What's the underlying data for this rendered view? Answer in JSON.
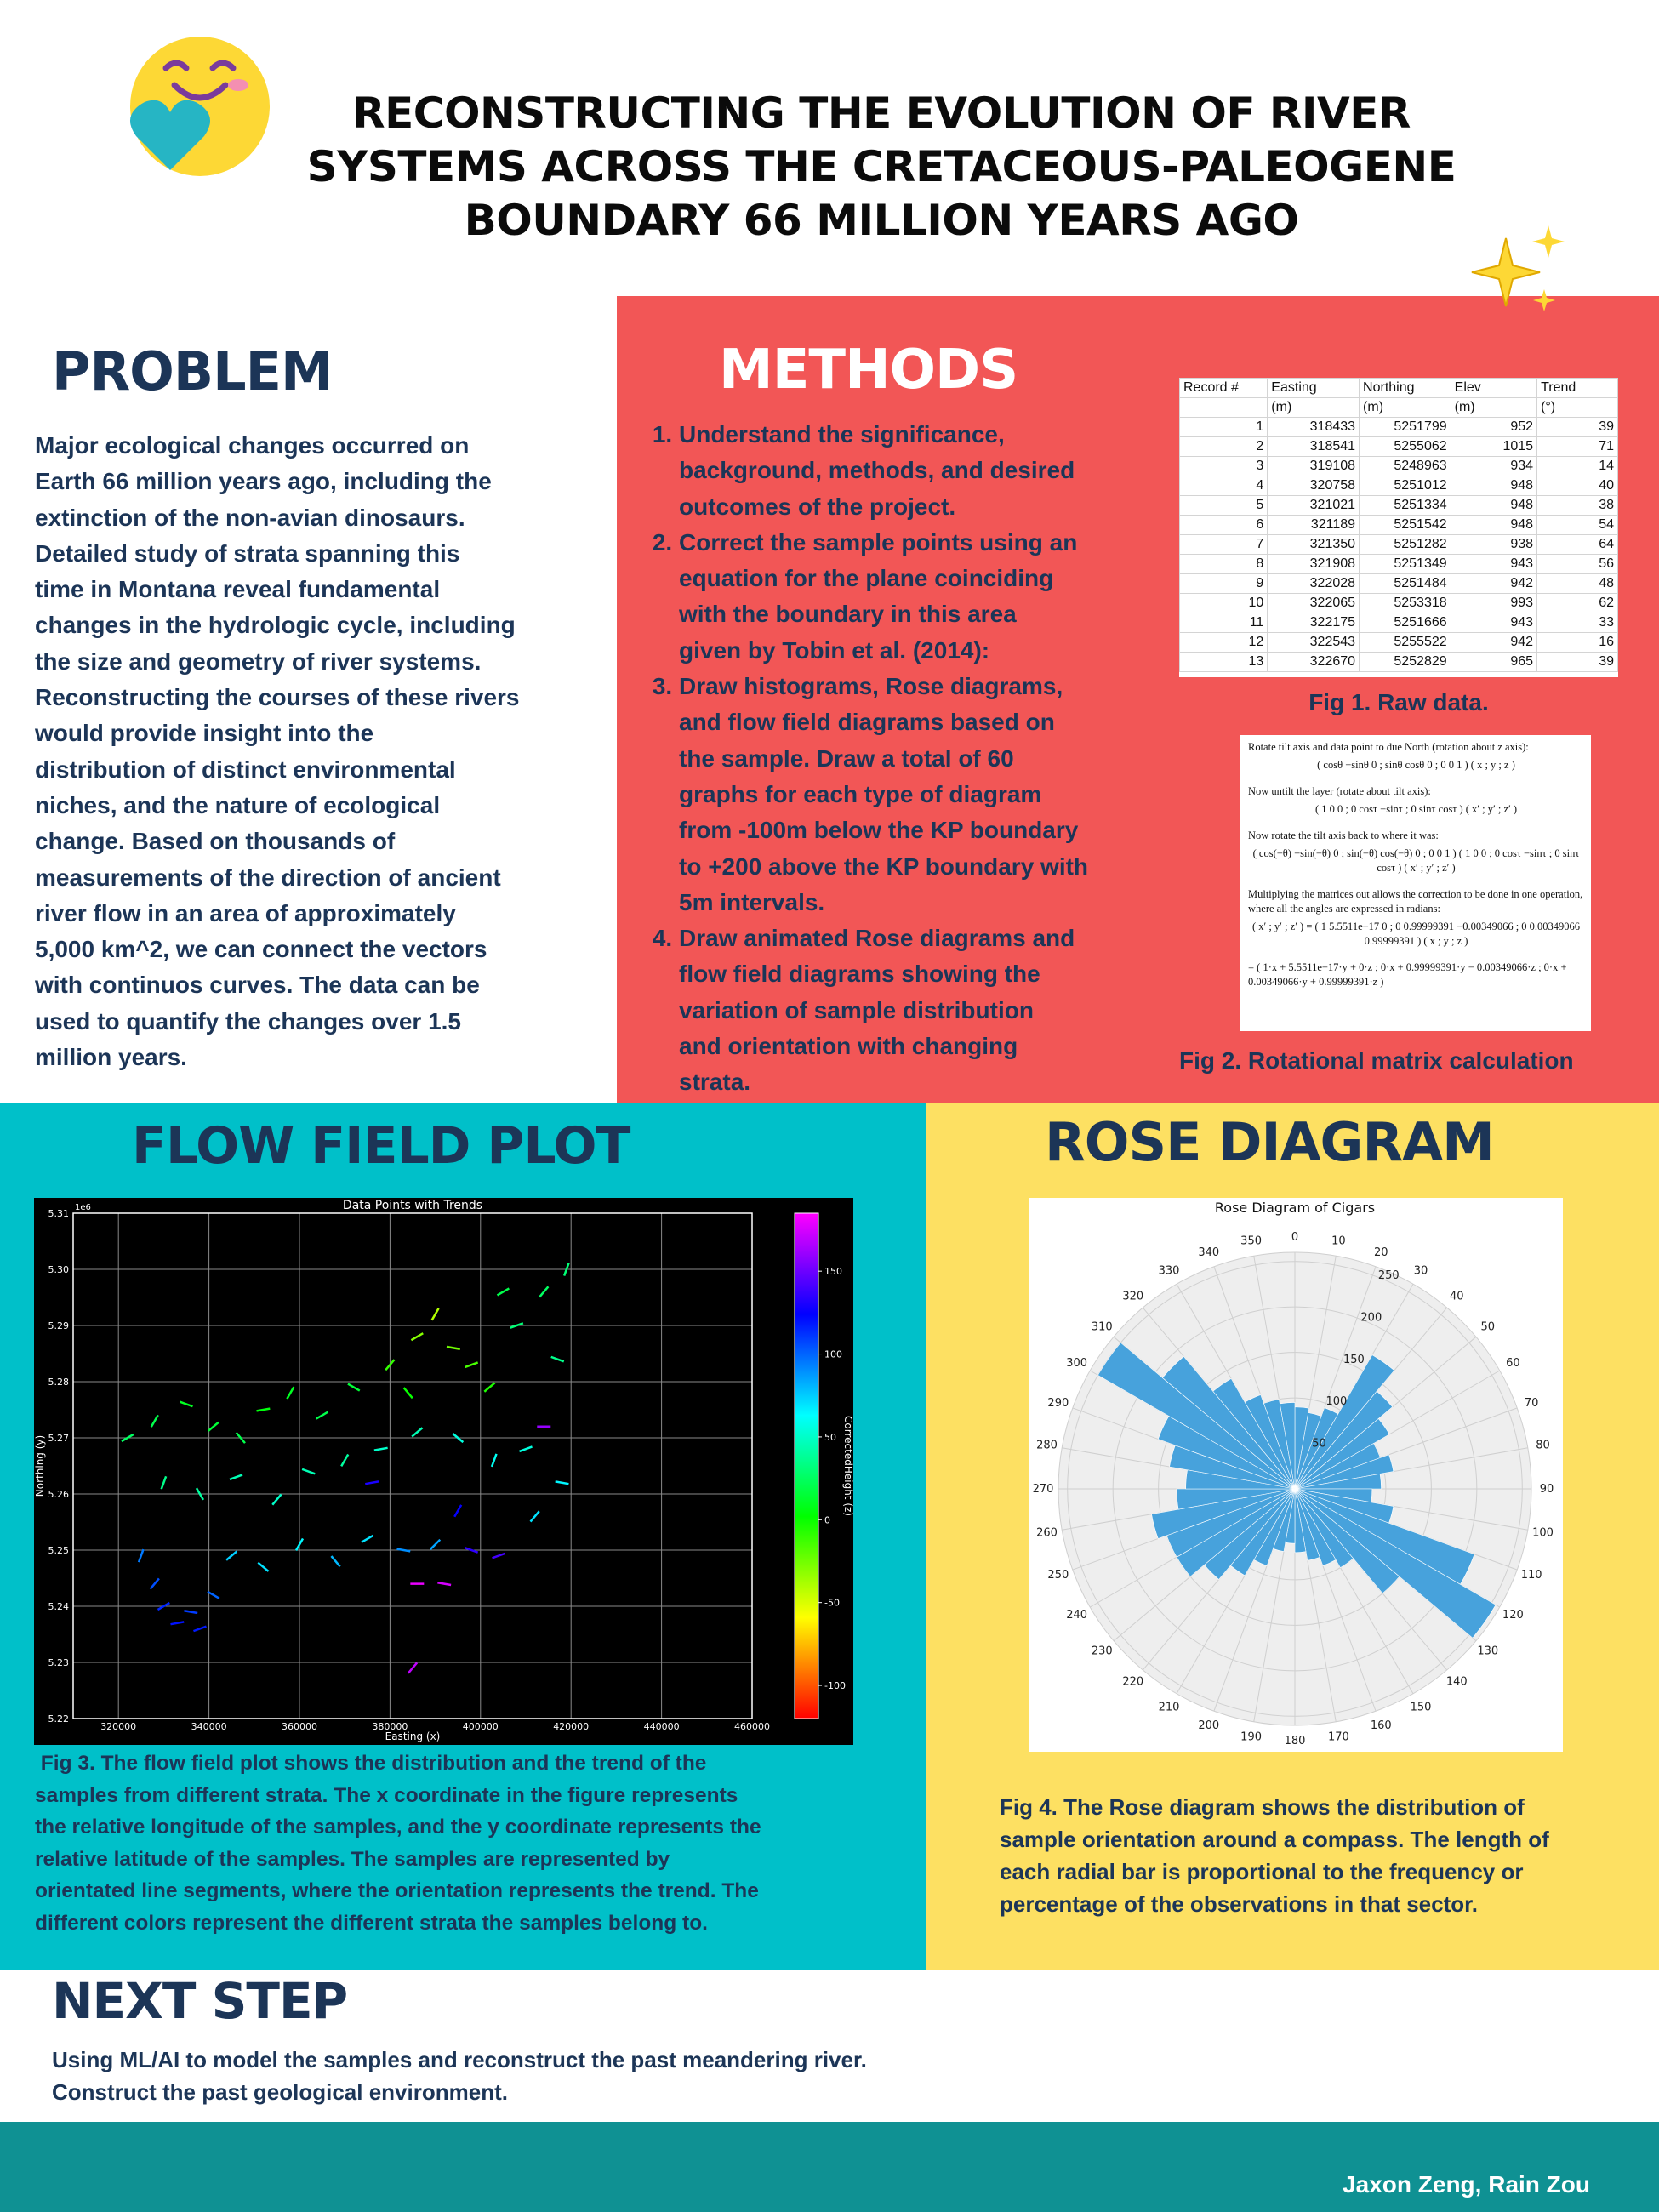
{
  "header": {
    "title": [
      "RECONSTRUCTING THE EVOLUTION OF RIVER",
      "SYSTEMS ACROSS THE CRETACEOUS-PALEOGENE",
      "BOUNDARY 66 MILLION YEARS AGO"
    ]
  },
  "problem": {
    "heading": "PROBLEM",
    "lines": [
      "Major ecological changes occurred on",
      "Earth 66 million years ago, including the",
      "extinction of the non-avian dinosaurs.",
      "Detailed study of strata spanning this",
      "time in Montana reveal fundamental",
      "changes in the hydrologic cycle, including",
      "the size and geometry of river systems.",
      "Reconstructing the courses of these rivers",
      "would provide insight into the",
      "distribution of distinct environmental",
      "niches, and the nature of ecological",
      "change. Based on thousands of",
      "measurements of the direction of ancient",
      "river flow in an area of approximately",
      "5,000 km^2, we can connect the vectors",
      "with continuos curves. The data can be",
      "used to quantify the changes over 1.5",
      "million years."
    ]
  },
  "methods": {
    "heading": "METHODS",
    "steps": [
      [
        "Understand the significance,",
        "background, methods, and desired",
        "outcomes of the project."
      ],
      [
        "Correct the sample points using an",
        "equation for the plane coinciding",
        "with the boundary in this area",
        "given by Tobin et al. (2014):"
      ],
      [
        "Draw histograms, Rose diagrams,",
        "and flow field diagrams based on",
        "the sample. Draw a total of 60",
        "graphs for each type of diagram",
        "from -100m below the KP boundary",
        "to +200 above the KP boundary with",
        "5m intervals."
      ],
      [
        "Draw animated Rose diagrams and",
        "flow field diagrams showing the",
        "variation of sample distribution",
        "and orientation with changing",
        "strata."
      ]
    ]
  },
  "fig1": {
    "table": {
      "header": [
        [
          "Record #",
          "Easting",
          "Northing",
          "Elev",
          "Trend"
        ],
        [
          "",
          "(m)",
          "(m)",
          "(m)",
          "(°)"
        ]
      ],
      "rows": [
        [
          1,
          318433,
          5251799,
          952,
          39
        ],
        [
          2,
          318541,
          5255062,
          1015,
          71
        ],
        [
          3,
          319108,
          5248963,
          934,
          14
        ],
        [
          4,
          320758,
          5251012,
          948,
          40
        ],
        [
          5,
          321021,
          5251334,
          948,
          38
        ],
        [
          6,
          321189,
          5251542,
          948,
          54
        ],
        [
          7,
          321350,
          5251282,
          938,
          64
        ],
        [
          8,
          321908,
          5251349,
          943,
          56
        ],
        [
          9,
          322028,
          5251484,
          942,
          48
        ],
        [
          10,
          322065,
          5253318,
          993,
          62
        ],
        [
          11,
          322175,
          5251666,
          943,
          33
        ],
        [
          12,
          322543,
          5255522,
          942,
          16
        ],
        [
          13,
          322670,
          5252829,
          965,
          39
        ]
      ]
    },
    "caption": "Fig 1. Raw data."
  },
  "fig2": {
    "lines": [
      "Rotate tilt axis and data point to due North (rotation about z axis):",
      "( cosθ  −sinθ  0 ; sinθ  cosθ  0 ; 0  0  1 ) ( x ; y ; z )",
      "Now untilt the layer (rotate about tilt axis):",
      "( 1  0  0 ; 0  cosτ  −sinτ ; 0  sinτ  cosτ ) ( x′ ; y′ ; z′ )",
      "Now rotate the tilt axis back to where it was:",
      "( cos(−θ)  −sin(−θ)  0 ; sin(−θ)  cos(−θ)  0 ; 0  0  1 ) ( 1  0  0 ; 0  cosτ  −sinτ ; 0  sinτ  cosτ ) ( x′ ; y′ ; z′ )",
      "Multiplying the matrices out allows the correction to be done in one operation, where all the angles are expressed in radians:",
      "( x′ ; y′ ; z′ ) = ( 1  5.5511e−17  0 ; 0  0.99999391  −0.00349066 ; 0  0.00349066  0.99999391 ) ( x ; y ; z )",
      "= ( 1·x + 5.5511e−17·y + 0·z ; 0·x + 0.99999391·y − 0.00349066·z ; 0·x + 0.00349066·y + 0.99999391·z )"
    ],
    "caption": "Fig 2. Rotational matrix calculation"
  },
  "flow_panel": {
    "heading": "FLOW FIELD PLOT",
    "caption": [
      " Fig 3. The flow field plot shows the distribution and the trend of the",
      "samples from different strata. The x coordinate in the figure represents",
      "the relative longitude of the samples, and the y coordinate represents the",
      "relative latitude of the samples. The samples are represented by",
      "orientated line segments, where the orientation represents the trend. The",
      "different colors represent the different strata the samples belong to."
    ]
  },
  "rose_panel": {
    "heading": "ROSE DIAGRAM",
    "caption": [
      "Fig 4. The Rose diagram shows the distribution of",
      "sample orientation around a compass. The length of",
      "each radial bar is proportional to the frequency or",
      "percentage of the observations in that sector."
    ]
  },
  "next_step": {
    "heading": "NEXT STEP",
    "lines": [
      "Using ML/AI to model the samples and reconstruct the past meandering river.",
      "Construct the past geological environment."
    ]
  },
  "footer": {
    "authors": "Jaxon Zeng, Rain Zou"
  },
  "chart_data": [
    {
      "type": "quiver",
      "title": "Data Points with Trends",
      "x_label": "Easting (x)",
      "y_label": "Northing (y)",
      "y_offset_label": "1e6",
      "colorbar_label": "CorrectedHeight (z)",
      "colormap": "gist_rainbow",
      "grid": true,
      "xlim": [
        310000,
        460000
      ],
      "xticks": [
        320000,
        340000,
        360000,
        380000,
        400000,
        420000,
        440000,
        460000
      ],
      "ylim": [
        5220000,
        5310000
      ],
      "yticks": [
        {
          "value": 5220000,
          "label": "5.22"
        },
        {
          "value": 5230000,
          "label": "5.23"
        },
        {
          "value": 5240000,
          "label": "5.24"
        },
        {
          "value": 5250000,
          "label": "5.25"
        },
        {
          "value": 5260000,
          "label": "5.26"
        },
        {
          "value": 5270000,
          "label": "5.27"
        },
        {
          "value": 5280000,
          "label": "5.28"
        },
        {
          "value": 5290000,
          "label": "5.29"
        },
        {
          "value": 5300000,
          "label": "5.30"
        },
        {
          "value": 5310000,
          "label": "5.31"
        }
      ],
      "clim": [
        -120,
        185
      ],
      "cticks": [
        150,
        100,
        50,
        0,
        -50,
        -100
      ],
      "points": [
        {
          "x": 330000,
          "y": 5240000,
          "trend": 60,
          "z": 115
        },
        {
          "x": 333000,
          "y": 5237000,
          "trend": 80,
          "z": 120
        },
        {
          "x": 336000,
          "y": 5239000,
          "trend": 100,
          "z": 110
        },
        {
          "x": 338000,
          "y": 5236000,
          "trend": 70,
          "z": 118
        },
        {
          "x": 328000,
          "y": 5244000,
          "trend": 40,
          "z": 105
        },
        {
          "x": 341000,
          "y": 5242000,
          "trend": 120,
          "z": 100
        },
        {
          "x": 325000,
          "y": 5249000,
          "trend": 20,
          "z": 95
        },
        {
          "x": 345000,
          "y": 5249000,
          "trend": 50,
          "z": 75
        },
        {
          "x": 352000,
          "y": 5247000,
          "trend": 130,
          "z": 70
        },
        {
          "x": 360000,
          "y": 5251000,
          "trend": 30,
          "z": 65
        },
        {
          "x": 368000,
          "y": 5248000,
          "trend": 140,
          "z": 80
        },
        {
          "x": 375000,
          "y": 5252000,
          "trend": 60,
          "z": 70
        },
        {
          "x": 383000,
          "y": 5250000,
          "trend": 100,
          "z": 90
        },
        {
          "x": 390000,
          "y": 5251000,
          "trend": 45,
          "z": 85
        },
        {
          "x": 398000,
          "y": 5250000,
          "trend": 110,
          "z": 135
        },
        {
          "x": 404000,
          "y": 5249000,
          "trend": 70,
          "z": 140
        },
        {
          "x": 395000,
          "y": 5257000,
          "trend": 30,
          "z": 125
        },
        {
          "x": 376000,
          "y": 5262000,
          "trend": 80,
          "z": 130
        },
        {
          "x": 386000,
          "y": 5244000,
          "trend": 90,
          "z": 180
        },
        {
          "x": 392000,
          "y": 5244000,
          "trend": 100,
          "z": 175
        },
        {
          "x": 385000,
          "y": 5229000,
          "trend": 40,
          "z": 170
        },
        {
          "x": 330000,
          "y": 5262000,
          "trend": 20,
          "z": 35
        },
        {
          "x": 338000,
          "y": 5260000,
          "trend": 150,
          "z": 40
        },
        {
          "x": 346000,
          "y": 5263000,
          "trend": 70,
          "z": 45
        },
        {
          "x": 355000,
          "y": 5259000,
          "trend": 40,
          "z": 50
        },
        {
          "x": 362000,
          "y": 5264000,
          "trend": 110,
          "z": 45
        },
        {
          "x": 370000,
          "y": 5266000,
          "trend": 30,
          "z": 40
        },
        {
          "x": 378000,
          "y": 5268000,
          "trend": 80,
          "z": 50
        },
        {
          "x": 386000,
          "y": 5271000,
          "trend": 50,
          "z": 45
        },
        {
          "x": 395000,
          "y": 5270000,
          "trend": 130,
          "z": 55
        },
        {
          "x": 403000,
          "y": 5266000,
          "trend": 20,
          "z": 60
        },
        {
          "x": 410000,
          "y": 5268000,
          "trend": 70,
          "z": 55
        },
        {
          "x": 418000,
          "y": 5262000,
          "trend": 100,
          "z": 65
        },
        {
          "x": 412000,
          "y": 5256000,
          "trend": 40,
          "z": 70
        },
        {
          "x": 322000,
          "y": 5270000,
          "trend": 60,
          "z": 25
        },
        {
          "x": 328000,
          "y": 5273000,
          "trend": 30,
          "z": 20
        },
        {
          "x": 335000,
          "y": 5276000,
          "trend": 110,
          "z": 10
        },
        {
          "x": 341000,
          "y": 5272000,
          "trend": 50,
          "z": 15
        },
        {
          "x": 347000,
          "y": 5270000,
          "trend": 140,
          "z": 20
        },
        {
          "x": 352000,
          "y": 5275000,
          "trend": 80,
          "z": 5
        },
        {
          "x": 358000,
          "y": 5278000,
          "trend": 30,
          "z": 10
        },
        {
          "x": 365000,
          "y": 5274000,
          "trend": 60,
          "z": 20
        },
        {
          "x": 372000,
          "y": 5279000,
          "trend": 120,
          "z": 15
        },
        {
          "x": 380000,
          "y": 5283000,
          "trend": 40,
          "z": -10
        },
        {
          "x": 386000,
          "y": 5288000,
          "trend": 60,
          "z": -30
        },
        {
          "x": 390000,
          "y": 5292000,
          "trend": 30,
          "z": -40
        },
        {
          "x": 394000,
          "y": 5286000,
          "trend": 100,
          "z": -25
        },
        {
          "x": 398000,
          "y": 5283000,
          "trend": 70,
          "z": -15
        },
        {
          "x": 402000,
          "y": 5279000,
          "trend": 50,
          "z": -5
        },
        {
          "x": 384000,
          "y": 5278000,
          "trend": 140,
          "z": 0
        },
        {
          "x": 408000,
          "y": 5290000,
          "trend": 70,
          "z": 30
        },
        {
          "x": 414000,
          "y": 5296000,
          "trend": 40,
          "z": 25
        },
        {
          "x": 419000,
          "y": 5300000,
          "trend": 20,
          "z": 30
        },
        {
          "x": 417000,
          "y": 5284000,
          "trend": 110,
          "z": 35
        },
        {
          "x": 405000,
          "y": 5296000,
          "trend": 60,
          "z": 20
        },
        {
          "x": 414000,
          "y": 5272000,
          "trend": 90,
          "z": 160
        }
      ]
    },
    {
      "type": "rose",
      "title": "Rose Diagram of Cigars",
      "color": "#47a2dc",
      "grid": true,
      "thetaticks": [
        0,
        10,
        20,
        30,
        40,
        50,
        60,
        70,
        80,
        90,
        100,
        110,
        120,
        130,
        140,
        150,
        160,
        170,
        180,
        190,
        200,
        210,
        220,
        230,
        240,
        250,
        260,
        270,
        280,
        290,
        300,
        310,
        320,
        330,
        340,
        350
      ],
      "values": [
        90,
        85,
        95,
        170,
        140,
        120,
        100,
        110,
        95,
        85,
        110,
        210,
        255,
        150,
        100,
        90,
        80,
        70,
        60,
        70,
        90,
        110,
        130,
        150,
        150,
        160,
        130,
        120,
        140,
        160,
        250,
        190,
        140,
        110,
        100,
        95
      ],
      "rlim": [
        0,
        260
      ],
      "rticks": [
        50,
        100,
        150,
        200,
        250
      ]
    }
  ]
}
